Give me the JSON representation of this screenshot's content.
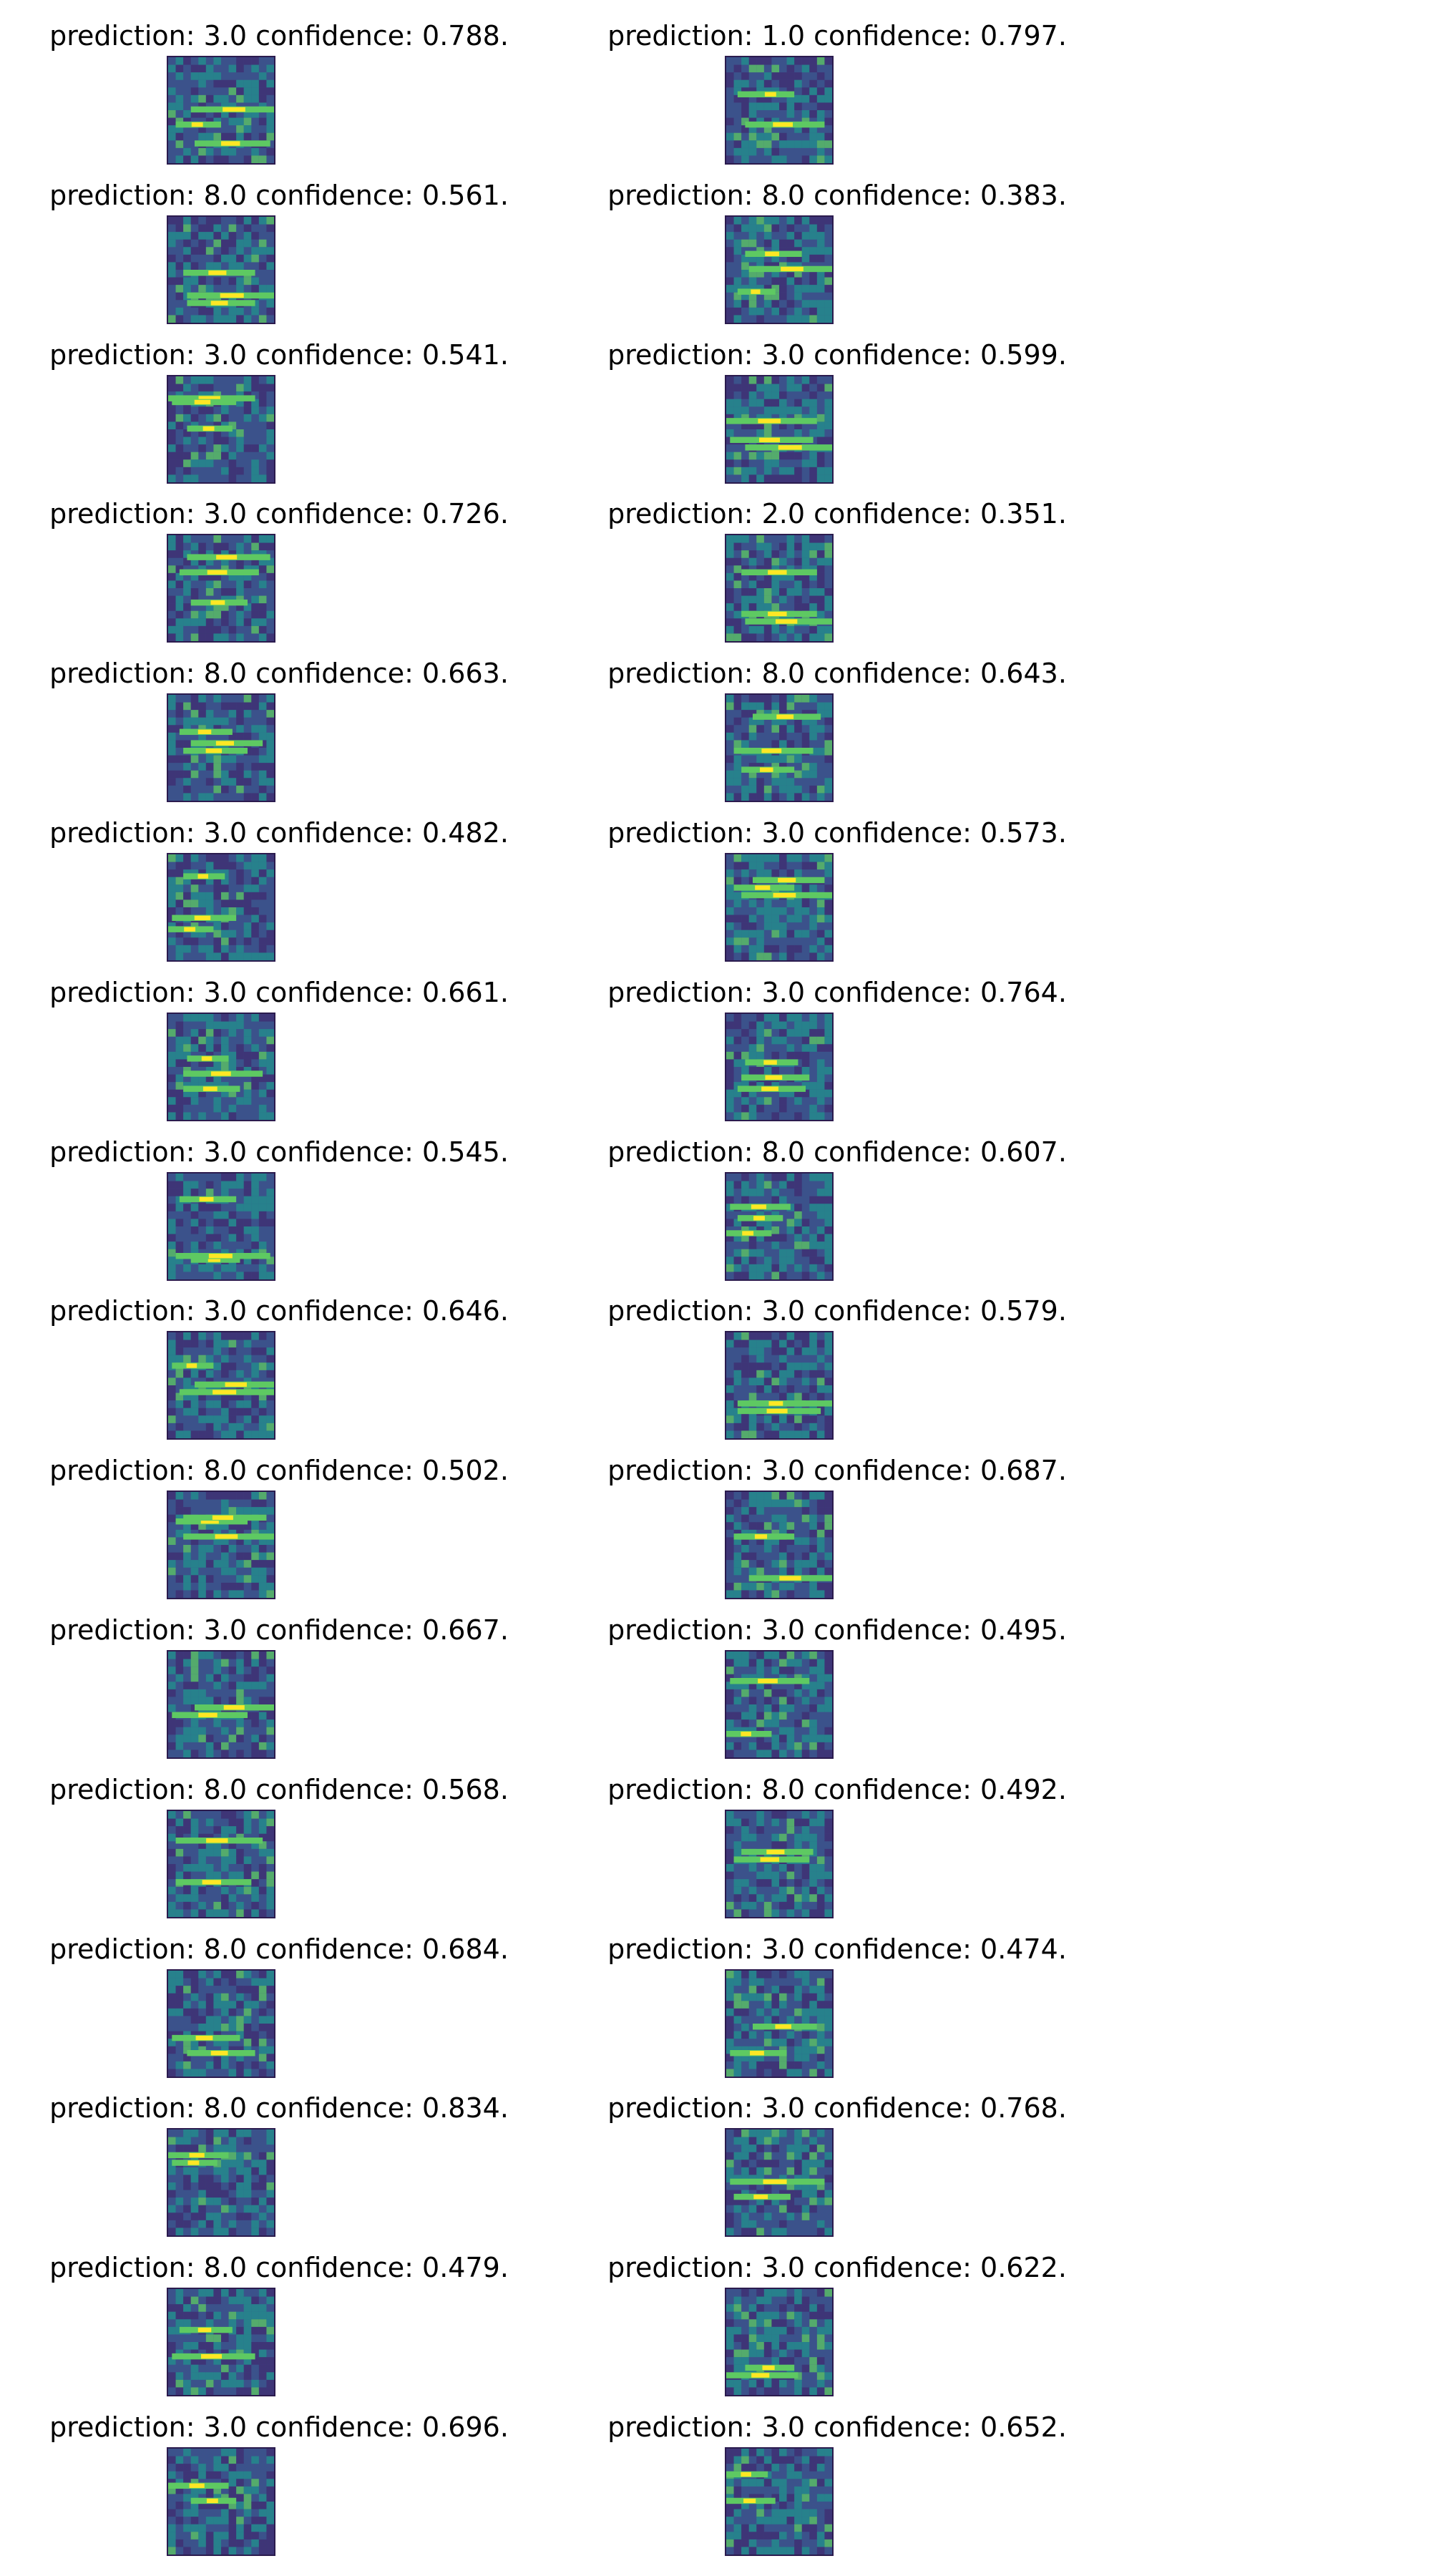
{
  "colormap": [
    "#440154",
    "#3b528b",
    "#21918c",
    "#5ec962",
    "#fde725"
  ],
  "items": [
    {
      "prediction": "3.0",
      "confidence": "0.788",
      "text": "prediction: 3.0 confidence: 0.788."
    },
    {
      "prediction": "1.0",
      "confidence": "0.797",
      "text": "prediction: 1.0 confidence: 0.797."
    },
    {
      "prediction": "8.0",
      "confidence": "0.561",
      "text": "prediction: 8.0 confidence: 0.561."
    },
    {
      "prediction": "8.0",
      "confidence": "0.383",
      "text": "prediction: 8.0 confidence: 0.383."
    },
    {
      "prediction": "3.0",
      "confidence": "0.541",
      "text": "prediction: 3.0 confidence: 0.541."
    },
    {
      "prediction": "3.0",
      "confidence": "0.599",
      "text": "prediction: 3.0 confidence: 0.599."
    },
    {
      "prediction": "3.0",
      "confidence": "0.726",
      "text": "prediction: 3.0 confidence: 0.726."
    },
    {
      "prediction": "2.0",
      "confidence": "0.351",
      "text": "prediction: 2.0 confidence: 0.351."
    },
    {
      "prediction": "8.0",
      "confidence": "0.663",
      "text": "prediction: 8.0 confidence: 0.663."
    },
    {
      "prediction": "8.0",
      "confidence": "0.643",
      "text": "prediction: 8.0 confidence: 0.643."
    },
    {
      "prediction": "3.0",
      "confidence": "0.482",
      "text": "prediction: 3.0 confidence: 0.482."
    },
    {
      "prediction": "3.0",
      "confidence": "0.573",
      "text": "prediction: 3.0 confidence: 0.573."
    },
    {
      "prediction": "3.0",
      "confidence": "0.661",
      "text": "prediction: 3.0 confidence: 0.661."
    },
    {
      "prediction": "3.0",
      "confidence": "0.764",
      "text": "prediction: 3.0 confidence: 0.764."
    },
    {
      "prediction": "3.0",
      "confidence": "0.545",
      "text": "prediction: 3.0 confidence: 0.545."
    },
    {
      "prediction": "8.0",
      "confidence": "0.607",
      "text": "prediction: 8.0 confidence: 0.607."
    },
    {
      "prediction": "3.0",
      "confidence": "0.646",
      "text": "prediction: 3.0 confidence: 0.646."
    },
    {
      "prediction": "3.0",
      "confidence": "0.579",
      "text": "prediction: 3.0 confidence: 0.579."
    },
    {
      "prediction": "8.0",
      "confidence": "0.502",
      "text": "prediction: 8.0 confidence: 0.502."
    },
    {
      "prediction": "3.0",
      "confidence": "0.687",
      "text": "prediction: 3.0 confidence: 0.687."
    },
    {
      "prediction": "3.0",
      "confidence": "0.667",
      "text": "prediction: 3.0 confidence: 0.667."
    },
    {
      "prediction": "3.0",
      "confidence": "0.495",
      "text": "prediction: 3.0 confidence: 0.495."
    },
    {
      "prediction": "8.0",
      "confidence": "0.568",
      "text": "prediction: 8.0 confidence: 0.568."
    },
    {
      "prediction": "8.0",
      "confidence": "0.492",
      "text": "prediction: 8.0 confidence: 0.492."
    },
    {
      "prediction": "8.0",
      "confidence": "0.684",
      "text": "prediction: 8.0 confidence: 0.684."
    },
    {
      "prediction": "3.0",
      "confidence": "0.474",
      "text": "prediction: 3.0 confidence: 0.474."
    },
    {
      "prediction": "8.0",
      "confidence": "0.834",
      "text": "prediction: 8.0 confidence: 0.834."
    },
    {
      "prediction": "3.0",
      "confidence": "0.768",
      "text": "prediction: 3.0 confidence: 0.768."
    },
    {
      "prediction": "8.0",
      "confidence": "0.479",
      "text": "prediction: 8.0 confidence: 0.479."
    },
    {
      "prediction": "3.0",
      "confidence": "0.622",
      "text": "prediction: 3.0 confidence: 0.622."
    },
    {
      "prediction": "3.0",
      "confidence": "0.696",
      "text": "prediction: 3.0 confidence: 0.696."
    },
    {
      "prediction": "3.0",
      "confidence": "0.652",
      "text": "prediction: 3.0 confidence: 0.652."
    }
  ]
}
